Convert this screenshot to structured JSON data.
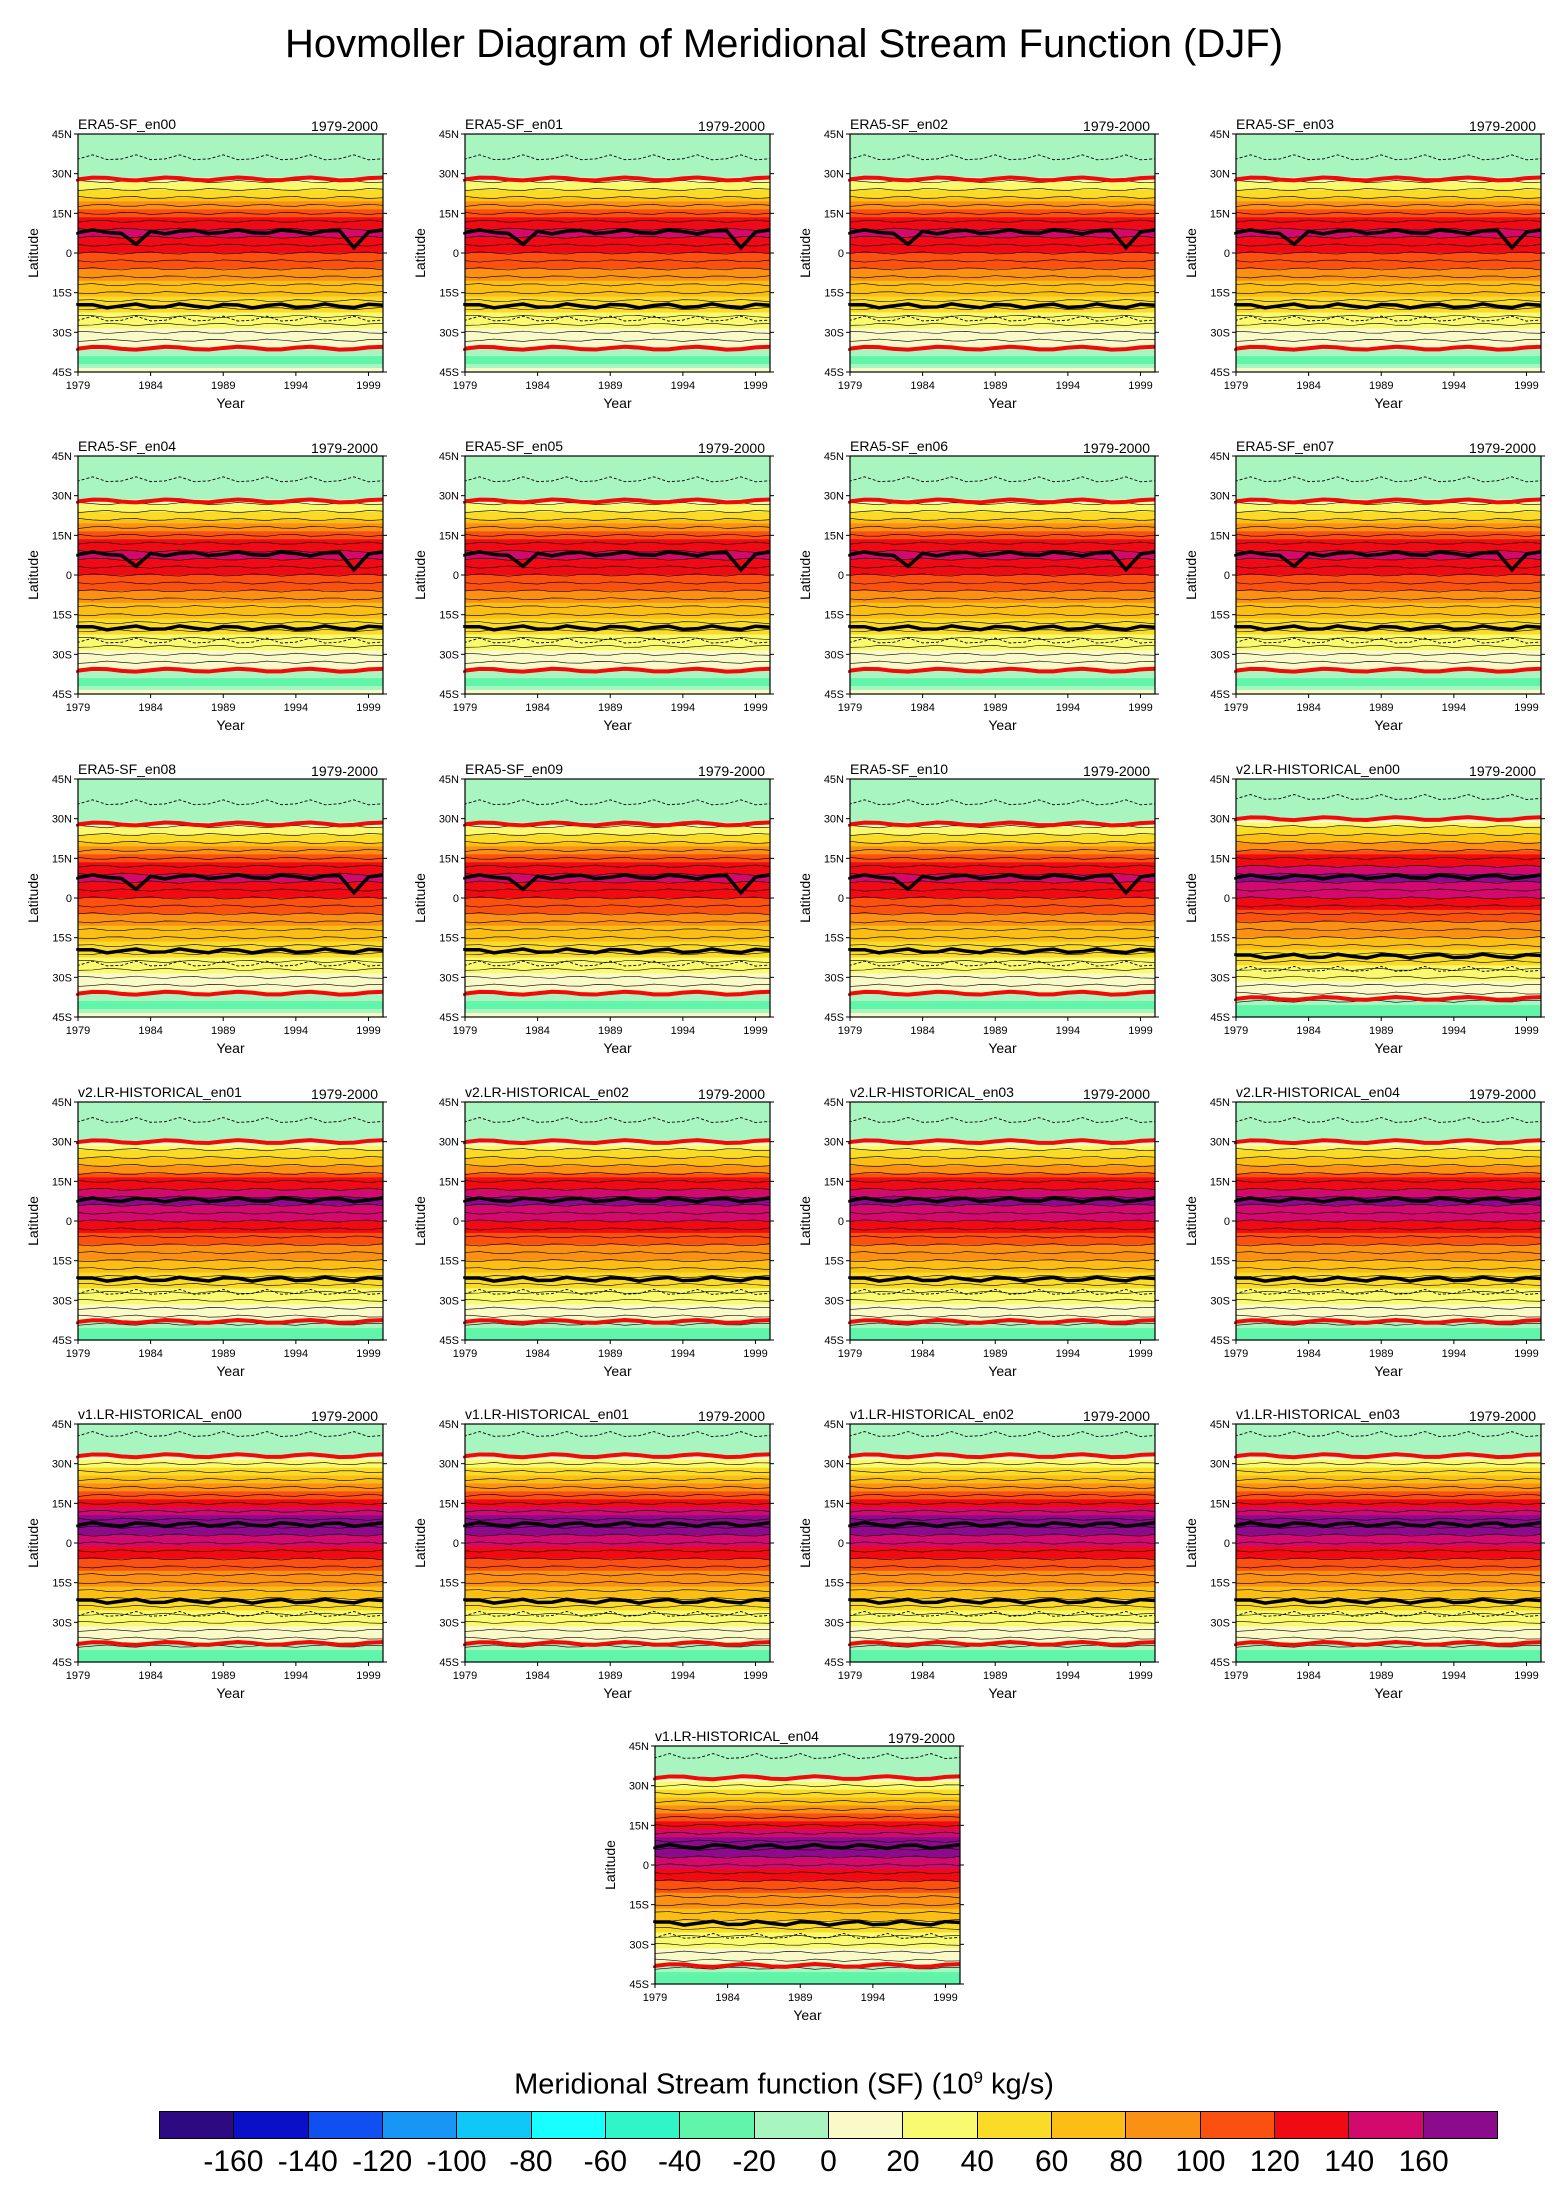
{
  "title": "Hovmoller Diagram of Meridional Stream Function (DJF)",
  "common": {
    "period": "1979-2000",
    "xlabel": "Year",
    "ylabel": "Latitude",
    "xticks": [
      "1979",
      "1984",
      "1989",
      "1994",
      "1999"
    ],
    "yticks": [
      "45N",
      "30N",
      "15N",
      "0",
      "15S",
      "30S",
      "45S"
    ]
  },
  "chart_data": {
    "type": "heatmap",
    "title": "Hovmoller Diagram of Meridional Stream Function (DJF)",
    "xlabel": "Year",
    "ylabel": "Latitude",
    "x_range": [
      1979,
      2000
    ],
    "y_range": [
      -45,
      45
    ],
    "contour_levels": [
      -160,
      -140,
      -120,
      -100,
      -80,
      -60,
      -40,
      -20,
      0,
      20,
      40,
      60,
      80,
      100,
      120,
      140,
      160
    ],
    "panels": [
      {
        "name": "ERA5-SF_en00",
        "period": "1979-2000",
        "max_center_lat": 8,
        "dry_zone_lat": -20,
        "edge_n_lat": 28,
        "edge_s_lat": -36
      },
      {
        "name": "ERA5-SF_en01",
        "period": "1979-2000",
        "max_center_lat": 8,
        "dry_zone_lat": -20,
        "edge_n_lat": 28,
        "edge_s_lat": -36
      },
      {
        "name": "ERA5-SF_en02",
        "period": "1979-2000",
        "max_center_lat": 8,
        "dry_zone_lat": -20,
        "edge_n_lat": 28,
        "edge_s_lat": -36
      },
      {
        "name": "ERA5-SF_en03",
        "period": "1979-2000",
        "max_center_lat": 8,
        "dry_zone_lat": -20,
        "edge_n_lat": 28,
        "edge_s_lat": -36
      },
      {
        "name": "ERA5-SF_en04",
        "period": "1979-2000",
        "max_center_lat": 8,
        "dry_zone_lat": -20,
        "edge_n_lat": 28,
        "edge_s_lat": -36
      },
      {
        "name": "ERA5-SF_en05",
        "period": "1979-2000",
        "max_center_lat": 8,
        "dry_zone_lat": -20,
        "edge_n_lat": 28,
        "edge_s_lat": -36
      },
      {
        "name": "ERA5-SF_en06",
        "period": "1979-2000",
        "max_center_lat": 8,
        "dry_zone_lat": -20,
        "edge_n_lat": 28,
        "edge_s_lat": -36
      },
      {
        "name": "ERA5-SF_en07",
        "period": "1979-2000",
        "max_center_lat": 8,
        "dry_zone_lat": -20,
        "edge_n_lat": 28,
        "edge_s_lat": -36
      },
      {
        "name": "ERA5-SF_en08",
        "period": "1979-2000",
        "max_center_lat": 8,
        "dry_zone_lat": -20,
        "edge_n_lat": 28,
        "edge_s_lat": -36
      },
      {
        "name": "ERA5-SF_en09",
        "period": "1979-2000",
        "max_center_lat": 8,
        "dry_zone_lat": -20,
        "edge_n_lat": 28,
        "edge_s_lat": -36
      },
      {
        "name": "ERA5-SF_en10",
        "period": "1979-2000",
        "max_center_lat": 8,
        "dry_zone_lat": -20,
        "edge_n_lat": 28,
        "edge_s_lat": -36
      },
      {
        "name": "v2.LR-HISTORICAL_en00",
        "period": "1979-2000",
        "max_center_lat": 8,
        "dry_zone_lat": -22,
        "edge_n_lat": 30,
        "edge_s_lat": -38
      },
      {
        "name": "v2.LR-HISTORICAL_en01",
        "period": "1979-2000",
        "max_center_lat": 8,
        "dry_zone_lat": -22,
        "edge_n_lat": 30,
        "edge_s_lat": -38
      },
      {
        "name": "v2.LR-HISTORICAL_en02",
        "period": "1979-2000",
        "max_center_lat": 8,
        "dry_zone_lat": -22,
        "edge_n_lat": 30,
        "edge_s_lat": -38
      },
      {
        "name": "v2.LR-HISTORICAL_en03",
        "period": "1979-2000",
        "max_center_lat": 8,
        "dry_zone_lat": -22,
        "edge_n_lat": 30,
        "edge_s_lat": -38
      },
      {
        "name": "v2.LR-HISTORICAL_en04",
        "period": "1979-2000",
        "max_center_lat": 8,
        "dry_zone_lat": -22,
        "edge_n_lat": 30,
        "edge_s_lat": -38
      },
      {
        "name": "v1.LR-HISTORICAL_en00",
        "period": "1979-2000",
        "max_center_lat": 7,
        "dry_zone_lat": -22,
        "edge_n_lat": 33,
        "edge_s_lat": -38
      },
      {
        "name": "v1.LR-HISTORICAL_en01",
        "period": "1979-2000",
        "max_center_lat": 7,
        "dry_zone_lat": -22,
        "edge_n_lat": 33,
        "edge_s_lat": -38
      },
      {
        "name": "v1.LR-HISTORICAL_en02",
        "period": "1979-2000",
        "max_center_lat": 7,
        "dry_zone_lat": -22,
        "edge_n_lat": 33,
        "edge_s_lat": -38
      },
      {
        "name": "v1.LR-HISTORICAL_en03",
        "period": "1979-2000",
        "max_center_lat": 7,
        "dry_zone_lat": -22,
        "edge_n_lat": 33,
        "edge_s_lat": -38
      },
      {
        "name": "v1.LR-HISTORICAL_en04",
        "period": "1979-2000",
        "max_center_lat": 7,
        "dry_zone_lat": -22,
        "edge_n_lat": 33,
        "edge_s_lat": -38
      }
    ]
  },
  "colorbar": {
    "title": "Meridional Stream function (SF) (10",
    "title_exp": "9",
    "title_unit": " kg/s)",
    "labels": [
      "-160",
      "-140",
      "-120",
      "-100",
      "-80",
      "-60",
      "-40",
      "-20",
      "0",
      "20",
      "40",
      "60",
      "80",
      "100",
      "120",
      "140",
      "160"
    ],
    "colors": [
      "#2e0a82",
      "#0a10c8",
      "#1050f0",
      "#1896f5",
      "#10c8f8",
      "#18ffff",
      "#30f5c8",
      "#60f5a8",
      "#a8f5c0",
      "#fafac8",
      "#fafa70",
      "#fadc28",
      "#fabe14",
      "#fa9014",
      "#fa5010",
      "#f00a14",
      "#d20a6e",
      "#8c0a8c"
    ]
  }
}
